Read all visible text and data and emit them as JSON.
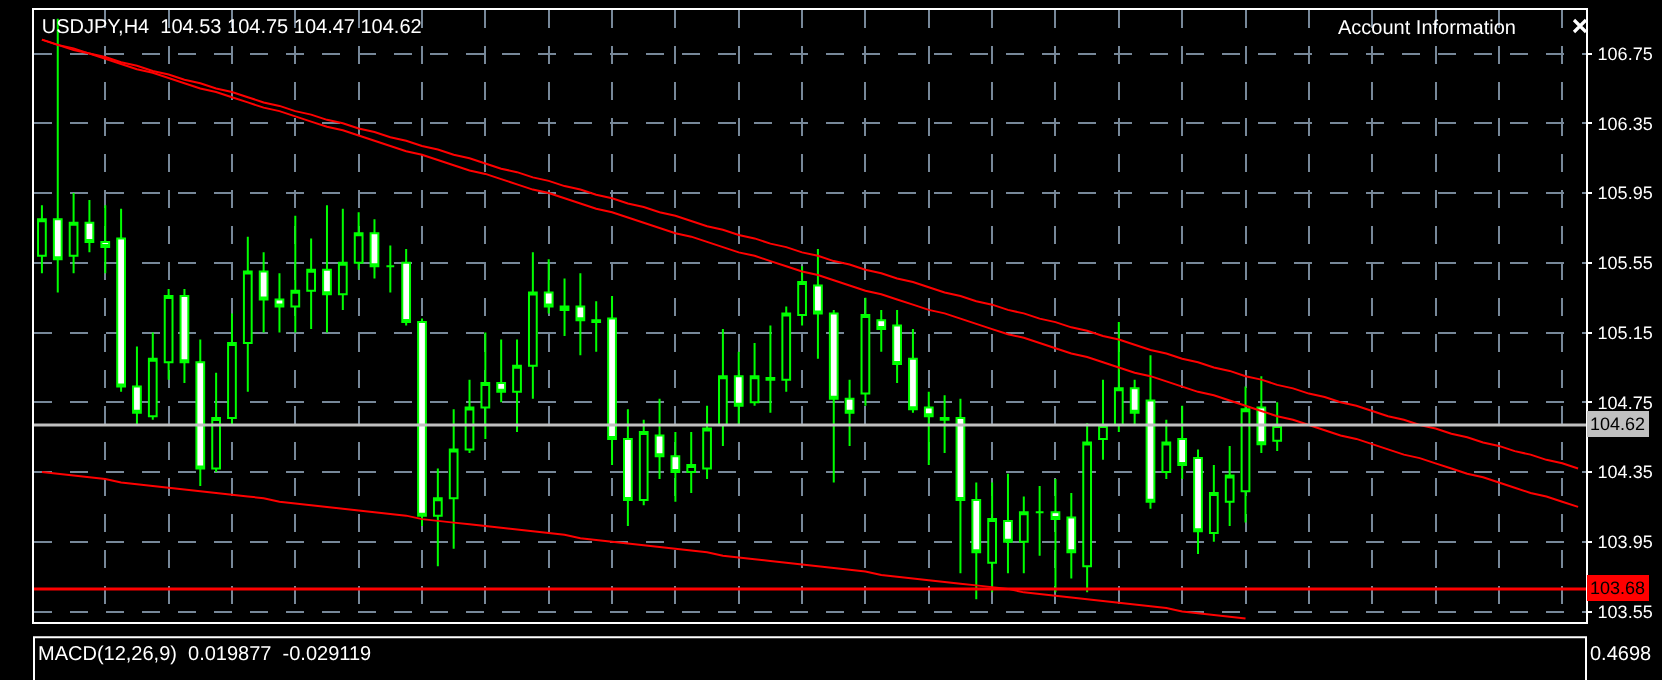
{
  "chart_data": {
    "type": "candlestick",
    "title": "USDJPY,H4  104.53 104.75 104.47 104.62",
    "color": "#00ff00",
    "categories": [
      null,
      null,
      null,
      null,
      null,
      null,
      null,
      null,
      null,
      null,
      null,
      null,
      null,
      null,
      null,
      null,
      null,
      null,
      null,
      null,
      null,
      null,
      null,
      null,
      null,
      null,
      null,
      null,
      null,
      null,
      null,
      null,
      null,
      null,
      null,
      null,
      null,
      null,
      null,
      null,
      null,
      null,
      null,
      null,
      null,
      null,
      null,
      null,
      null,
      null,
      null,
      null,
      null,
      null,
      null,
      null,
      null,
      null,
      null,
      null,
      null,
      null,
      null,
      null,
      null,
      null,
      null,
      null,
      null,
      null,
      null,
      null,
      null,
      null,
      null,
      null,
      null,
      null,
      null,
      null,
      null,
      null,
      null,
      null,
      null,
      null,
      null,
      null,
      null,
      null,
      null,
      null,
      null,
      null,
      null,
      null,
      null,
      null
    ],
    "ohlc": [
      [
        105.59,
        105.88,
        105.49,
        105.8
      ],
      [
        105.8,
        106.95,
        105.38,
        105.57
      ],
      [
        105.59,
        105.95,
        105.49,
        105.78
      ],
      [
        105.78,
        105.91,
        105.61,
        105.67
      ],
      [
        105.67,
        105.88,
        105.49,
        105.64
      ],
      [
        105.69,
        105.86,
        104.81,
        104.84
      ],
      [
        104.84,
        105.07,
        104.62,
        104.69
      ],
      [
        104.67,
        105.15,
        104.65,
        105.0
      ],
      [
        104.98,
        105.4,
        104.88,
        105.36
      ],
      [
        105.36,
        105.4,
        104.86,
        104.98
      ],
      [
        104.98,
        105.11,
        104.27,
        104.37
      ],
      [
        104.37,
        104.92,
        104.35,
        104.66
      ],
      [
        104.66,
        105.26,
        104.62,
        105.09
      ],
      [
        105.09,
        105.7,
        104.81,
        105.5
      ],
      [
        105.5,
        105.61,
        105.15,
        105.34
      ],
      [
        105.34,
        105.49,
        105.15,
        105.3
      ],
      [
        105.3,
        105.82,
        105.15,
        105.39
      ],
      [
        105.39,
        105.69,
        105.17,
        105.51
      ],
      [
        105.51,
        105.88,
        105.15,
        105.37
      ],
      [
        105.37,
        105.86,
        105.28,
        105.55
      ],
      [
        105.55,
        105.84,
        105.51,
        105.72
      ],
      [
        105.72,
        105.8,
        105.46,
        105.53
      ],
      [
        105.53,
        105.65,
        105.38,
        105.53
      ],
      [
        105.55,
        105.63,
        105.19,
        105.21
      ],
      [
        105.21,
        105.23,
        104.04,
        104.1
      ],
      [
        104.1,
        104.37,
        103.81,
        104.2
      ],
      [
        104.2,
        104.71,
        103.91,
        104.48
      ],
      [
        104.48,
        104.88,
        104.46,
        104.72
      ],
      [
        104.72,
        105.15,
        104.54,
        104.86
      ],
      [
        104.86,
        105.11,
        104.75,
        104.81
      ],
      [
        104.81,
        105.11,
        104.58,
        104.96
      ],
      [
        104.96,
        105.61,
        104.77,
        105.38
      ],
      [
        105.38,
        105.57,
        105.26,
        105.3
      ],
      [
        105.3,
        105.46,
        105.13,
        105.28
      ],
      [
        105.3,
        105.49,
        105.02,
        105.22
      ],
      [
        105.22,
        105.33,
        105.04,
        105.21
      ],
      [
        105.23,
        105.36,
        104.39,
        104.54
      ],
      [
        104.54,
        104.71,
        104.04,
        104.19
      ],
      [
        104.19,
        104.65,
        104.16,
        104.58
      ],
      [
        104.56,
        104.77,
        104.31,
        104.44
      ],
      [
        104.44,
        104.58,
        104.18,
        104.35
      ],
      [
        104.35,
        104.58,
        104.23,
        104.39
      ],
      [
        104.37,
        104.73,
        104.31,
        104.6
      ],
      [
        104.62,
        105.17,
        104.5,
        104.9
      ],
      [
        104.9,
        105.04,
        104.62,
        104.73
      ],
      [
        104.75,
        105.09,
        104.73,
        104.9
      ],
      [
        104.89,
        105.19,
        104.69,
        104.88
      ],
      [
        104.88,
        105.3,
        104.81,
        105.26
      ],
      [
        105.25,
        105.53,
        105.19,
        105.44
      ],
      [
        105.42,
        105.63,
        105.0,
        105.26
      ],
      [
        105.26,
        105.28,
        104.29,
        104.77
      ],
      [
        104.77,
        104.88,
        104.5,
        104.69
      ],
      [
        104.8,
        105.35,
        104.73,
        105.25
      ],
      [
        105.22,
        105.28,
        105.04,
        105.17
      ],
      [
        105.19,
        105.28,
        104.86,
        104.97
      ],
      [
        105.0,
        105.17,
        104.69,
        104.71
      ],
      [
        104.72,
        104.81,
        104.39,
        104.67
      ],
      [
        104.66,
        104.79,
        104.46,
        104.65
      ],
      [
        104.66,
        104.77,
        103.77,
        104.19
      ],
      [
        104.19,
        104.29,
        103.62,
        103.89
      ],
      [
        103.83,
        104.29,
        103.66,
        104.08
      ],
      [
        104.07,
        104.34,
        103.77,
        103.95
      ],
      [
        103.95,
        104.21,
        103.77,
        104.12
      ],
      [
        104.12,
        104.27,
        103.87,
        104.12
      ],
      [
        104.12,
        104.31,
        103.66,
        104.08
      ],
      [
        104.09,
        104.23,
        103.74,
        103.89
      ],
      [
        103.81,
        104.63,
        103.66,
        104.52
      ],
      [
        104.54,
        104.88,
        104.42,
        104.62
      ],
      [
        104.62,
        105.21,
        104.58,
        104.83
      ],
      [
        104.83,
        104.88,
        104.62,
        104.69
      ],
      [
        104.76,
        105.02,
        104.14,
        104.18
      ],
      [
        104.35,
        104.65,
        104.31,
        104.52
      ],
      [
        104.54,
        104.73,
        104.31,
        104.39
      ],
      [
        104.43,
        104.48,
        103.88,
        104.01
      ],
      [
        104.0,
        104.39,
        103.95,
        104.23
      ],
      [
        104.18,
        104.5,
        104.04,
        104.33
      ],
      [
        104.24,
        104.84,
        104.06,
        104.71
      ],
      [
        104.72,
        104.9,
        104.46,
        104.51
      ],
      [
        104.53,
        104.75,
        104.47,
        104.62
      ],
      null,
      null,
      null,
      null,
      null,
      null,
      null,
      null,
      null,
      null,
      null,
      null,
      null,
      null,
      null,
      null,
      null,
      null,
      null
    ],
    "series": [
      {
        "type": "line",
        "color": "#ff0000",
        "values": [
          106.83,
          106.8,
          106.78,
          106.75,
          106.73,
          106.7,
          106.68,
          106.65,
          106.63,
          106.6,
          106.58,
          106.55,
          106.53,
          106.5,
          106.47,
          106.45,
          106.42,
          106.4,
          106.37,
          106.35,
          106.32,
          106.3,
          106.27,
          106.25,
          106.22,
          106.2,
          106.17,
          106.15,
          106.12,
          106.09,
          106.07,
          106.04,
          106.02,
          105.99,
          105.97,
          105.94,
          105.92,
          105.89,
          105.87,
          105.84,
          105.82,
          105.79,
          105.76,
          105.74,
          105.71,
          105.69,
          105.66,
          105.64,
          105.61,
          105.59,
          105.56,
          105.54,
          105.51,
          105.49,
          105.46,
          105.44,
          105.41,
          105.38,
          105.36,
          105.33,
          105.31,
          105.28,
          105.26,
          105.23,
          105.21,
          105.18,
          105.16,
          105.13,
          105.11,
          105.08,
          105.05,
          105.03,
          105.0,
          104.98,
          104.95,
          104.93,
          104.9,
          104.88,
          104.85,
          104.83,
          104.8,
          104.78,
          104.75,
          104.73,
          104.7,
          104.67,
          104.65,
          104.62,
          104.6,
          104.57,
          104.55,
          104.52,
          104.5,
          104.47,
          104.45,
          104.42,
          104.4,
          104.37
        ]
      },
      {
        "type": "line",
        "color": "#ff0000",
        "values": [
          106.83,
          106.8,
          106.77,
          106.75,
          106.72,
          106.69,
          106.66,
          106.64,
          106.61,
          106.58,
          106.55,
          106.53,
          106.5,
          106.47,
          106.44,
          106.42,
          106.39,
          106.36,
          106.33,
          106.31,
          106.28,
          106.25,
          106.22,
          106.19,
          106.17,
          106.14,
          106.11,
          106.08,
          106.06,
          106.03,
          106.0,
          105.97,
          105.95,
          105.92,
          105.89,
          105.86,
          105.84,
          105.81,
          105.78,
          105.75,
          105.72,
          105.7,
          105.67,
          105.64,
          105.61,
          105.59,
          105.56,
          105.53,
          105.5,
          105.48,
          105.45,
          105.42,
          105.39,
          105.37,
          105.34,
          105.31,
          105.28,
          105.26,
          105.23,
          105.2,
          105.17,
          105.14,
          105.12,
          105.09,
          105.06,
          105.03,
          105.01,
          104.98,
          104.95,
          104.92,
          104.9,
          104.87,
          104.84,
          104.81,
          104.79,
          104.76,
          104.73,
          104.7,
          104.67,
          104.65,
          104.62,
          104.59,
          104.56,
          104.54,
          104.51,
          104.48,
          104.45,
          104.43,
          104.4,
          104.37,
          104.34,
          104.32,
          104.29,
          104.26,
          104.23,
          104.21,
          104.18,
          104.15
        ]
      },
      {
        "type": "line",
        "color": "#ff0000",
        "values": [
          104.35,
          104.34,
          104.33,
          104.32,
          104.31,
          104.29,
          104.28,
          104.27,
          104.26,
          104.25,
          104.24,
          104.23,
          104.22,
          104.21,
          104.2,
          104.18,
          104.17,
          104.16,
          104.15,
          104.14,
          104.13,
          104.12,
          104.11,
          104.1,
          104.08,
          104.07,
          104.06,
          104.05,
          104.04,
          104.03,
          104.02,
          104.01,
          104.0,
          103.99,
          103.97,
          103.96,
          103.95,
          103.94,
          103.93,
          103.92,
          103.91,
          103.9,
          103.89,
          103.87,
          103.86,
          103.85,
          103.84,
          103.83,
          103.82,
          103.81,
          103.8,
          103.79,
          103.78,
          103.76,
          103.75,
          103.74,
          103.73,
          103.72,
          103.71,
          103.7,
          103.69,
          103.68,
          103.66,
          103.65,
          103.64,
          103.63,
          103.62,
          103.61,
          103.6,
          103.59,
          103.58,
          103.57,
          103.55,
          103.54,
          103.53,
          103.52,
          103.51,
          null,
          null,
          null,
          null,
          null,
          null,
          null,
          null,
          null,
          null,
          null,
          null,
          null,
          null,
          null,
          null,
          null,
          null,
          null,
          null,
          null
        ]
      }
    ],
    "ref_lines": [
      {
        "axis": "y",
        "value": 104.62,
        "label": "104.62",
        "color": "#c0c0c0"
      },
      {
        "axis": "y",
        "value": 103.68,
        "label": "103.68",
        "color": "#ff0000"
      }
    ],
    "ylim": [
      103.49,
      107.0
    ],
    "yticks": [
      103.55,
      103.95,
      104.35,
      104.75,
      105.15,
      105.55,
      105.95,
      106.35,
      106.75
    ],
    "grid": true,
    "tick_labels": "y",
    "annotations": [
      "Account Information",
      "MACD(12,26,9)  0.019877  -0.029119",
      "0.4698"
    ]
  }
}
